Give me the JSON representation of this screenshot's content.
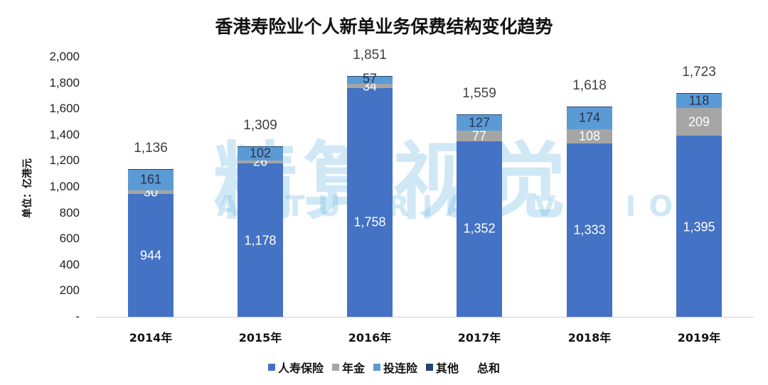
{
  "title": "香港寿险业个人新单业务保费结构变化趋势",
  "ylabel": "单位：亿港元",
  "watermark": {
    "cn": "精算视觉",
    "en": "ACTUARIAL VISION"
  },
  "yticks": [
    "2,000",
    "1,800",
    "1,600",
    "1,400",
    "1,200",
    "1,000",
    "800",
    "600",
    "400",
    "200",
    "-"
  ],
  "legend": [
    {
      "label": "人寿保险",
      "color": "#4472C4"
    },
    {
      "label": "年金",
      "color": "#A5A5A5"
    },
    {
      "label": "投连险",
      "color": "#5B9BD5"
    },
    {
      "label": "其他",
      "color": "#264478"
    },
    {
      "label": "总和",
      "color": null
    }
  ],
  "bars": [
    {
      "year": "2014年",
      "life": "944",
      "annuity": "30",
      "ilas": "161",
      "total": "1,136"
    },
    {
      "year": "2015年",
      "life": "1,178",
      "annuity": "26",
      "ilas": "102",
      "total": "1,309"
    },
    {
      "year": "2016年",
      "life": "1,758",
      "annuity": "34",
      "ilas": "57",
      "total": "1,851"
    },
    {
      "year": "2017年",
      "life": "1,352",
      "annuity": "77",
      "ilas": "127",
      "total": "1,559"
    },
    {
      "year": "2018年",
      "life": "1,333",
      "annuity": "108",
      "ilas": "174",
      "total": "1,618"
    },
    {
      "year": "2019年",
      "life": "1,395",
      "annuity": "209",
      "ilas": "118",
      "total": "1,723"
    }
  ],
  "chart_data": {
    "type": "bar",
    "stacked": true,
    "title": "香港寿险业个人新单业务保费结构变化趋势",
    "xlabel": "",
    "ylabel": "单位：亿港元",
    "ylim": [
      0,
      2000
    ],
    "categories": [
      "2014年",
      "2015年",
      "2016年",
      "2017年",
      "2018年",
      "2019年"
    ],
    "series": [
      {
        "name": "人寿保险",
        "color": "#4472C4",
        "values": [
          944,
          1178,
          1758,
          1352,
          1333,
          1395
        ]
      },
      {
        "name": "年金",
        "color": "#A5A5A5",
        "values": [
          30,
          26,
          34,
          77,
          108,
          209
        ]
      },
      {
        "name": "投连险",
        "color": "#5B9BD5",
        "values": [
          161,
          102,
          57,
          127,
          174,
          118
        ]
      },
      {
        "name": "其他",
        "color": "#264478",
        "values": [
          1,
          3,
          2,
          3,
          3,
          1
        ]
      },
      {
        "name": "总和",
        "values": [
          1136,
          1309,
          1851,
          1559,
          1618,
          1723
        ]
      }
    ],
    "legend_position": "bottom",
    "grid": false
  }
}
